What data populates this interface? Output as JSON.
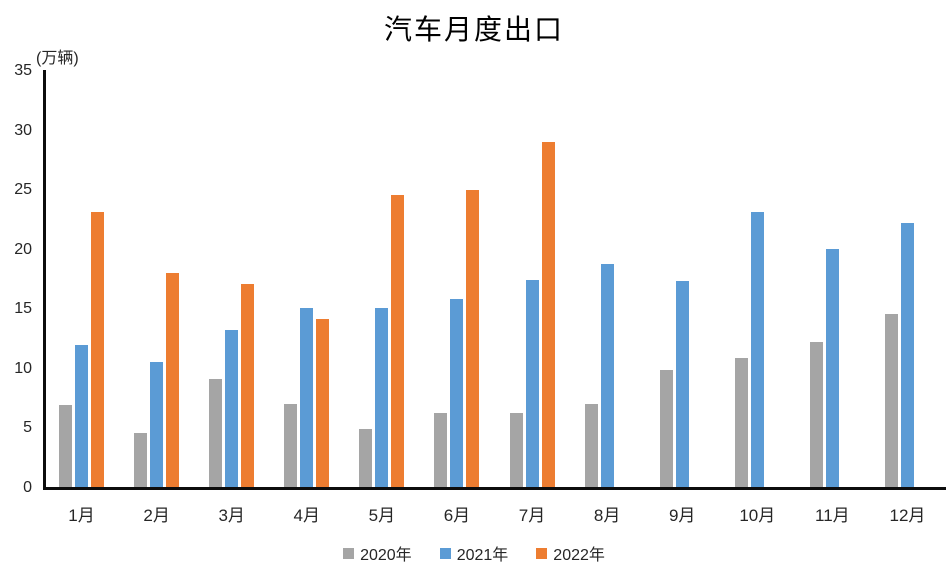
{
  "title": "汽车月度出口",
  "y_axis_unit": "(万辆)",
  "chart_data": {
    "type": "bar",
    "title": "汽车月度出口",
    "xlabel": "",
    "ylabel": "(万辆)",
    "categories": [
      "1月",
      "2月",
      "3月",
      "4月",
      "5月",
      "6月",
      "7月",
      "8月",
      "9月",
      "10月",
      "11月",
      "12月"
    ],
    "series": [
      {
        "name": "2020年",
        "color": "#A5A5A5",
        "values": [
          6.9,
          4.5,
          9.1,
          7.0,
          4.9,
          6.2,
          6.2,
          7.0,
          9.8,
          10.8,
          12.2,
          14.5
        ]
      },
      {
        "name": "2021年",
        "color": "#5B9BD5",
        "values": [
          11.9,
          10.5,
          13.2,
          15.0,
          15.0,
          15.8,
          17.4,
          18.7,
          17.3,
          23.1,
          20.0,
          22.2
        ]
      },
      {
        "name": "2022年",
        "color": "#ED7D31",
        "values": [
          23.1,
          18.0,
          17.0,
          14.1,
          24.5,
          24.9,
          29.0,
          null,
          null,
          null,
          null,
          null
        ]
      }
    ],
    "ylim": [
      0,
      35
    ],
    "ytick_step": 5,
    "grid": false,
    "legend_position": "bottom"
  }
}
